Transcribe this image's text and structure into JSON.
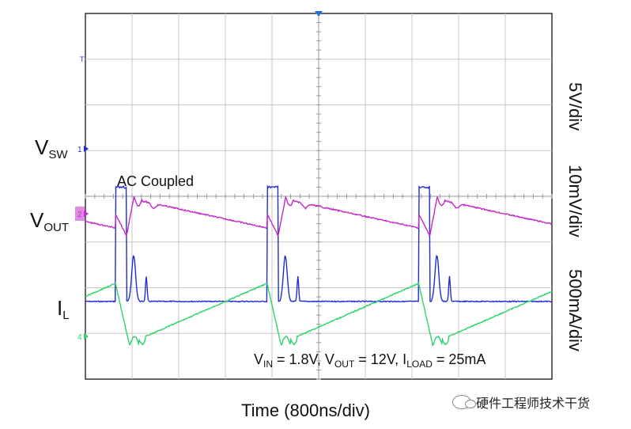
{
  "chart_data": {
    "type": "line",
    "title": "",
    "xlabel": "Time (800ns/div)",
    "annotation_coupling": "AC Coupled",
    "conditions": {
      "vin": "1.8V",
      "vout": "12V",
      "iload": "25mA"
    },
    "x_divisions": 10,
    "y_divisions": 8,
    "switching_period_div": 3.25,
    "channels": [
      {
        "name": "VSW",
        "label_main": "V",
        "label_sub": "SW",
        "scale": "5V/div",
        "color": "#1f2fcf",
        "marker": "1",
        "baseline_div": 1.7,
        "peak_div": 4.2,
        "ring_peak_div": 2.7,
        "pulse_start_div": 0.3,
        "pulse_width_div": 0.3
      },
      {
        "name": "VOUT",
        "label_main": "V",
        "label_sub": "OUT",
        "scale": "10mV/div",
        "color": "#c22cc8",
        "marker": "2",
        "baseline_div": 1.45,
        "ripple_div": 0.6
      },
      {
        "name": "IL",
        "label_main": "I",
        "label_sub": "L",
        "scale": "500mA/div",
        "color": "#2fd46a",
        "marker": "4",
        "min_div": -0.25,
        "peak_div": 1.5,
        "rise_start_div": 0.0,
        "rise_end_div": 1.3
      }
    ]
  }
}
